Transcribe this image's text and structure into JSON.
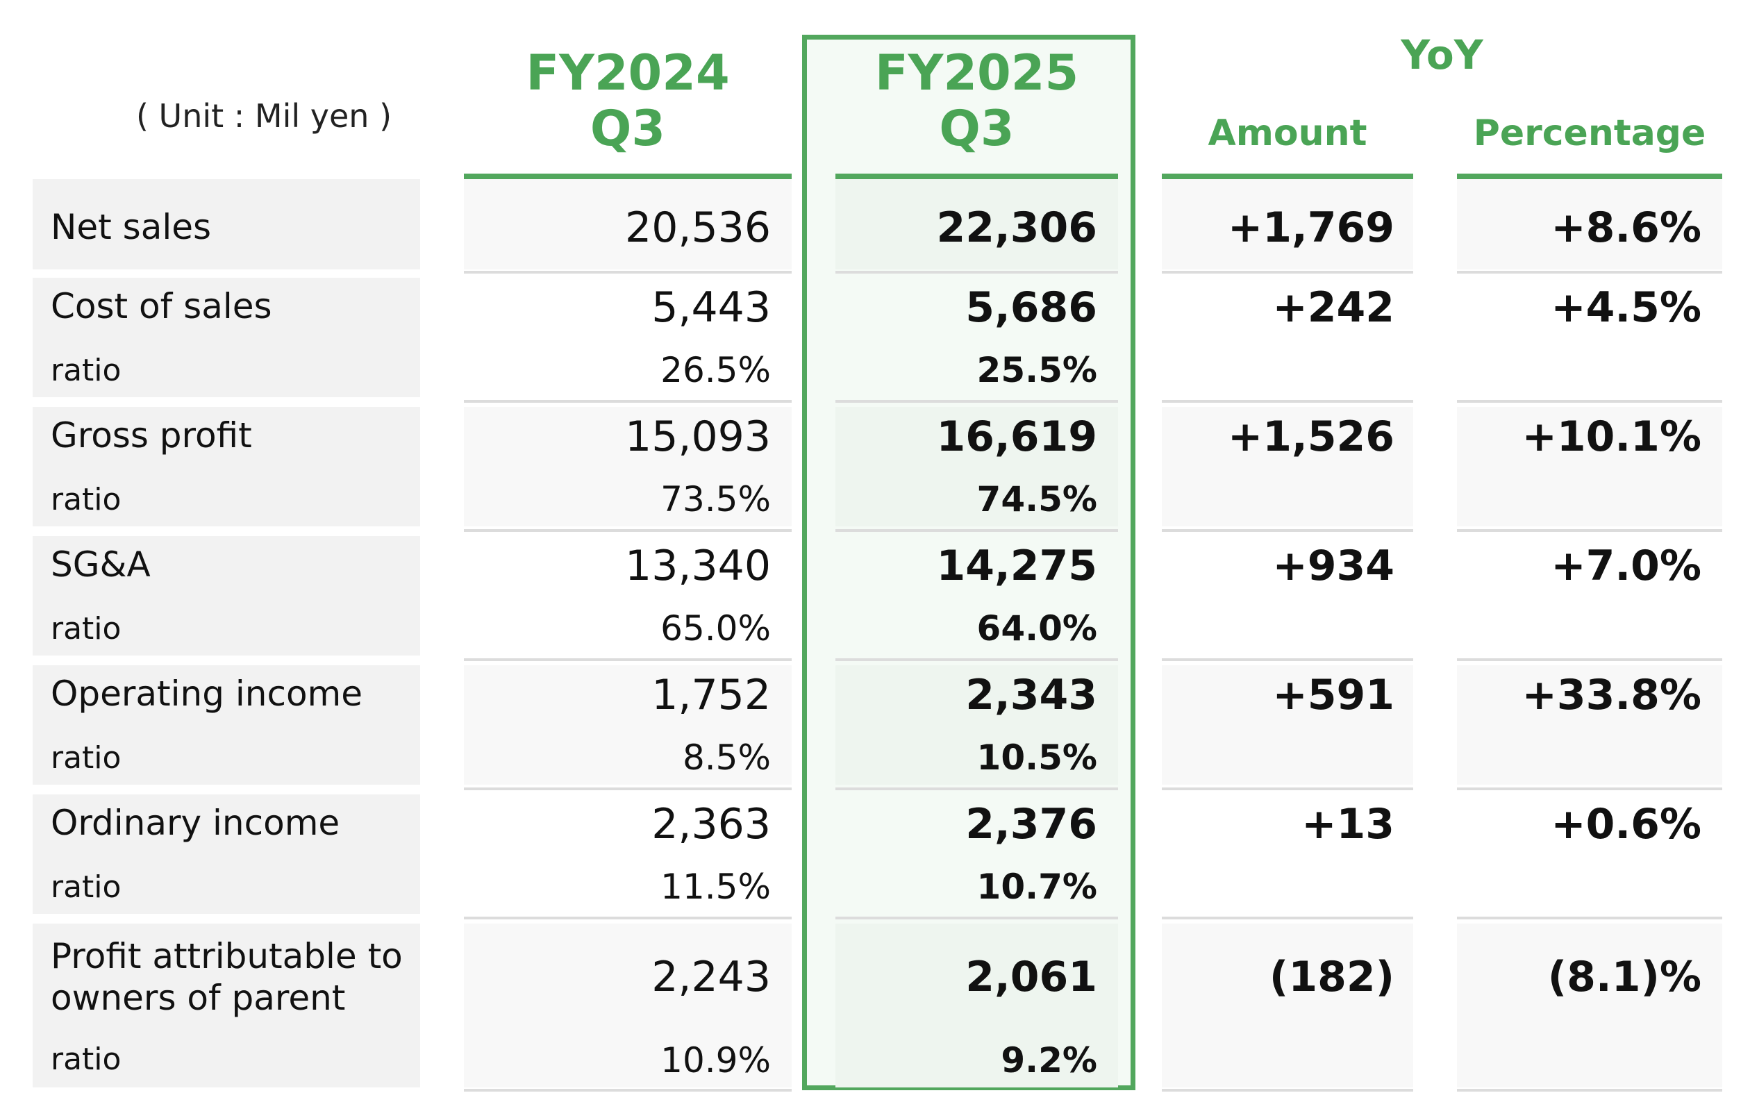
{
  "unit_label": "( Unit : Mil yen )",
  "headers": {
    "fy2024": {
      "line1": "FY2024",
      "line2": "Q3"
    },
    "fy2025": {
      "line1": "FY2025",
      "line2": "Q3"
    },
    "yoy": "YoY",
    "amount": "Amount",
    "percentage": "Percentage"
  },
  "accent_color": "#52a75d",
  "rows": [
    {
      "label": "Net sales",
      "fy2024": "20,536",
      "fy2025": "22,306",
      "amount": "+1,769",
      "percentage": "+8.6%"
    },
    {
      "label": "Cost of sales",
      "fy2024": "5,443",
      "fy2025": "5,686",
      "amount": "+242",
      "percentage": "+4.5%",
      "ratio_label": "ratio",
      "fy2024_ratio": "26.5%",
      "fy2025_ratio": "25.5%"
    },
    {
      "label": "Gross profit",
      "fy2024": "15,093",
      "fy2025": "16,619",
      "amount": "+1,526",
      "percentage": "+10.1%",
      "ratio_label": "ratio",
      "fy2024_ratio": "73.5%",
      "fy2025_ratio": "74.5%"
    },
    {
      "label": "SG&A",
      "fy2024": "13,340",
      "fy2025": "14,275",
      "amount": "+934",
      "percentage": "+7.0%",
      "ratio_label": "ratio",
      "fy2024_ratio": "65.0%",
      "fy2025_ratio": "64.0%"
    },
    {
      "label": "Operating income",
      "fy2024": "1,752",
      "fy2025": "2,343",
      "amount": "+591",
      "percentage": "+33.8%",
      "ratio_label": "ratio",
      "fy2024_ratio": "8.5%",
      "fy2025_ratio": "10.5%"
    },
    {
      "label": "Ordinary income",
      "fy2024": "2,363",
      "fy2025": "2,376",
      "amount": "+13",
      "percentage": "+0.6%",
      "ratio_label": "ratio",
      "fy2024_ratio": "11.5%",
      "fy2025_ratio": "10.7%"
    },
    {
      "label_line1": "Profit attributable to",
      "label_line2": "owners of parent",
      "fy2024": "2,243",
      "fy2025": "2,061",
      "amount": "(182)",
      "percentage": "(8.1)%",
      "ratio_label": "ratio",
      "fy2024_ratio": "10.9%",
      "fy2025_ratio": "9.2%"
    }
  ]
}
